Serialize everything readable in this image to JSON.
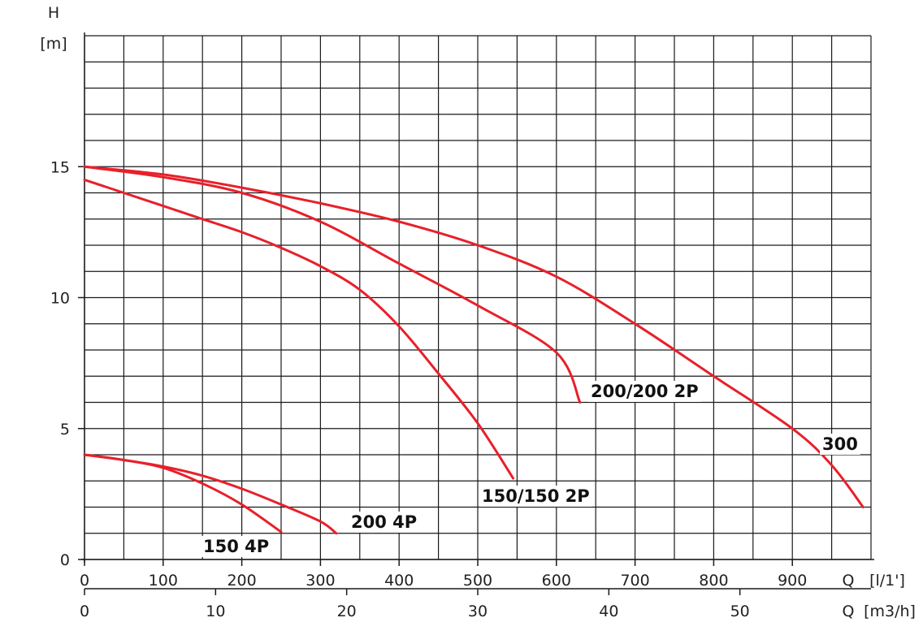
{
  "chart_data": {
    "type": "line",
    "y_axis": {
      "label_line1": "H",
      "label_line2": "[m]",
      "ylim": [
        0,
        20
      ],
      "ticks": [
        0,
        5,
        10,
        15
      ]
    },
    "x_axis_primary": {
      "label": "Q",
      "unit": "[l/1']",
      "xlim": [
        0,
        1000
      ],
      "ticks": [
        0,
        100,
        200,
        300,
        400,
        500,
        600,
        700,
        800,
        900
      ]
    },
    "x_axis_secondary": {
      "label": "Q",
      "unit": "[m3/h]",
      "xlim": [
        0,
        60
      ],
      "ticks": [
        0,
        10,
        20,
        30,
        40,
        50
      ]
    },
    "grid": true,
    "series": [
      {
        "name": "150 4P",
        "color": "#e8202a",
        "points": [
          [
            0,
            4.0
          ],
          [
            50,
            3.8
          ],
          [
            100,
            3.5
          ],
          [
            150,
            2.9
          ],
          [
            200,
            2.1
          ],
          [
            250,
            1.05
          ]
        ]
      },
      {
        "name": "200 4P",
        "color": "#e8202a",
        "points": [
          [
            0,
            4.0
          ],
          [
            50,
            3.8
          ],
          [
            100,
            3.55
          ],
          [
            150,
            3.2
          ],
          [
            200,
            2.7
          ],
          [
            250,
            2.1
          ],
          [
            300,
            1.45
          ],
          [
            320,
            1.0
          ]
        ]
      },
      {
        "name": "150/150 2P",
        "color": "#e8202a",
        "points": [
          [
            0,
            14.5
          ],
          [
            50,
            14.0
          ],
          [
            100,
            13.5
          ],
          [
            150,
            13.0
          ],
          [
            200,
            12.5
          ],
          [
            250,
            11.9
          ],
          [
            300,
            11.2
          ],
          [
            350,
            10.3
          ],
          [
            400,
            8.9
          ],
          [
            450,
            7.1
          ],
          [
            500,
            5.2
          ],
          [
            545,
            3.1
          ]
        ]
      },
      {
        "name": "200/200 2P",
        "color": "#e8202a",
        "points": [
          [
            0,
            15.0
          ],
          [
            100,
            14.6
          ],
          [
            200,
            14.0
          ],
          [
            300,
            12.9
          ],
          [
            400,
            11.3
          ],
          [
            500,
            9.7
          ],
          [
            600,
            7.9
          ],
          [
            630,
            6.0
          ]
        ]
      },
      {
        "name": "300",
        "color": "#e8202a",
        "points": [
          [
            0,
            15.0
          ],
          [
            100,
            14.7
          ],
          [
            200,
            14.2
          ],
          [
            300,
            13.6
          ],
          [
            400,
            12.9
          ],
          [
            500,
            12.0
          ],
          [
            600,
            10.8
          ],
          [
            700,
            9.0
          ],
          [
            800,
            7.0
          ],
          [
            900,
            5.0
          ],
          [
            950,
            3.6
          ],
          [
            990,
            2.0
          ]
        ]
      }
    ]
  }
}
